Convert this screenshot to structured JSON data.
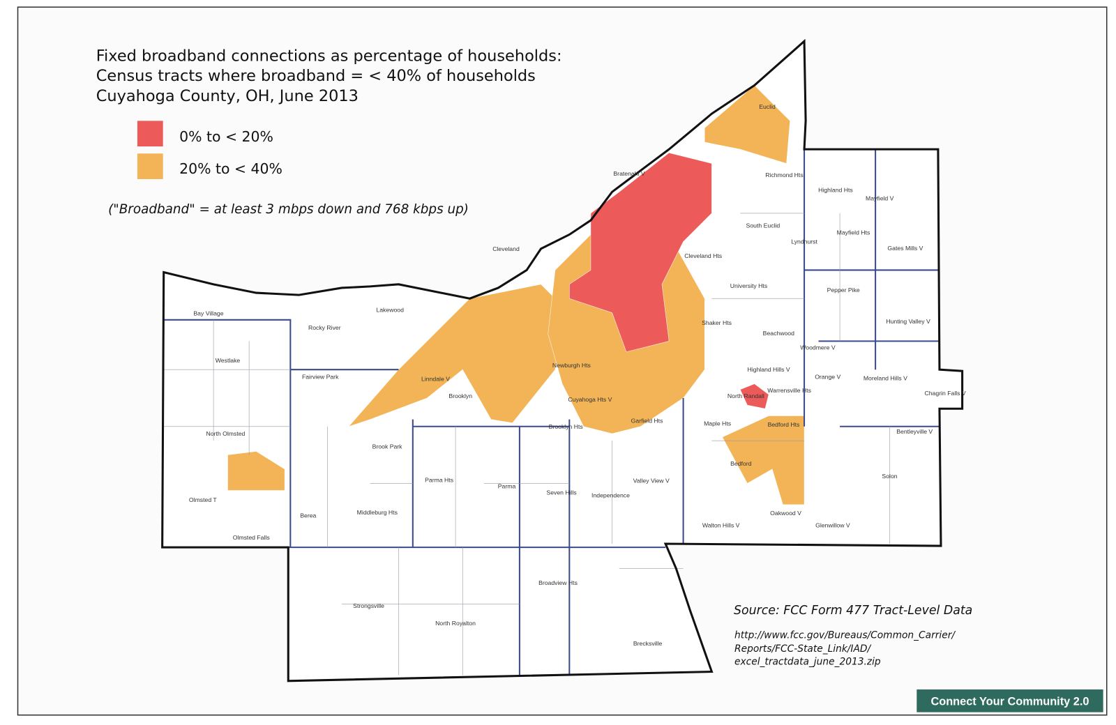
{
  "header": {
    "title_lines": [
      "Fixed broadband connections as percentage of households:",
      "Census tracts where broadband = < 40% of households",
      "Cuyahoga County, OH,  June 2013"
    ]
  },
  "legend": {
    "items": [
      {
        "label": "0% to < 20%",
        "color": "#ec5a5a"
      },
      {
        "label": "20% to < 40%",
        "color": "#f2b456"
      }
    ]
  },
  "note": "(\"Broadband\" = at least 3 mbps down and 768 kbps up)",
  "source": {
    "title": "Source: FCC Form 477 Tract-Level Data",
    "url_lines": [
      "http://www.fcc.gov/Bureaus/Common_Carrier/",
      "Reports/FCC-State_Link/IAD/",
      "excel_tractdata_june_2013.zip"
    ]
  },
  "badge": "Connect Your Community 2.0",
  "places": [
    "Euclid",
    "Bratenahl V",
    "Richmond Hts",
    "Highland Hts",
    "Mayfield V",
    "Cleveland",
    "Lakewood",
    "Bay Village",
    "Rocky River",
    "Westlake",
    "Fairview Park",
    "North Olmsted",
    "Olmsted T",
    "Olmsted Falls",
    "Berea",
    "Middleburg Hts",
    "Brook Park",
    "Parma Hts",
    "Parma",
    "Brooklyn",
    "Linndale V",
    "Brooklyn Hts",
    "Cuyahoga Hts V",
    "Newburgh Hts",
    "Garfield Hts",
    "Maple Hts",
    "Bedford Hts",
    "Bedford",
    "Oakwood V",
    "Walton Hills V",
    "Glenwillow V",
    "Solon",
    "Bentleyville V",
    "Chagrin Falls V",
    "Moreland Hills V",
    "Orange V",
    "Highland Hills V",
    "Warrensville Hts",
    "Beachwood",
    "Woodmere V",
    "Hunting Valley V",
    "Pepper Pike",
    "Gates Mills V",
    "Lyndhurst",
    "South Euclid",
    "Mayfield Hts",
    "University Hts",
    "Shaker Hts",
    "Cleveland Hts",
    "Independence",
    "Valley View V",
    "Seven Hills",
    "Broadview Hts",
    "North Royalton",
    "Strongsville",
    "Brecksville",
    "North Randall"
  ]
}
